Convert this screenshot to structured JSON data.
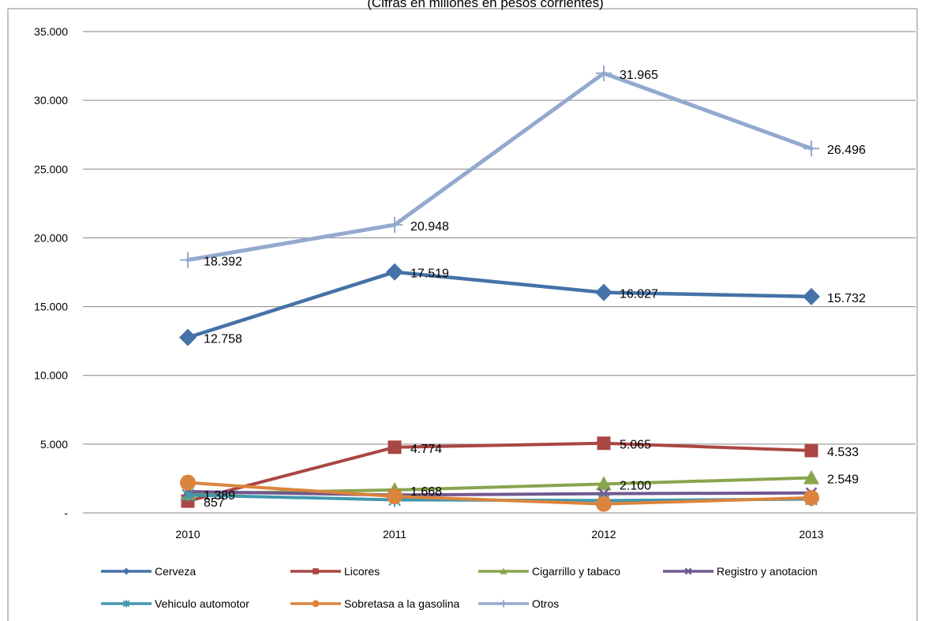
{
  "chart_data": {
    "type": "line",
    "title": "(Cifras en millones en pesos corrientes)",
    "categories": [
      "2010",
      "2011",
      "2012",
      "2013"
    ],
    "ylim": [
      0,
      35000
    ],
    "yticks": [
      0,
      5000,
      10000,
      15000,
      20000,
      25000,
      30000,
      35000
    ],
    "ytick_labels": [
      "-",
      "5.000",
      "10.000",
      "15.000",
      "20.000",
      "25.000",
      "30.000",
      "35.000"
    ],
    "grid": true,
    "legend": "bottom",
    "series": [
      {
        "name": "Cerveza",
        "color": "#4572A7",
        "marker": "diamond",
        "values": [
          12758,
          17519,
          16027,
          15732
        ],
        "labels": [
          "12.758",
          "17.519",
          "16.027",
          "15.732"
        ]
      },
      {
        "name": "Licores",
        "color": "#AA4643",
        "marker": "square",
        "values": [
          857,
          4774,
          5065,
          4533
        ],
        "labels": [
          "857",
          "4.774",
          "5.065",
          "4.533"
        ]
      },
      {
        "name": "Cigarrillo y tabaco",
        "color": "#89A54E",
        "marker": "triangle",
        "values": [
          1389,
          1668,
          2100,
          2549
        ],
        "labels": [
          "1.389",
          "1.668",
          "2.100",
          "2.549"
        ]
      },
      {
        "name": "Registro y anotacion",
        "color": "#71588F",
        "marker": "x",
        "values": [
          1550,
          1300,
          1400,
          1450
        ],
        "labels": []
      },
      {
        "name": "Vehiculo automotor",
        "color": "#4198AF",
        "marker": "star",
        "values": [
          1300,
          950,
          900,
          1000
        ],
        "labels": []
      },
      {
        "name": "Sobretasa a la gasolina",
        "color": "#DB843D",
        "marker": "circle",
        "values": [
          2200,
          1200,
          650,
          1100
        ],
        "labels": []
      },
      {
        "name": "Otros",
        "color": "#93A9CF",
        "marker": "plus",
        "values": [
          18392,
          20948,
          31965,
          26496
        ],
        "labels": [
          "18.392",
          "20.948",
          "31.965",
          "26.496"
        ]
      }
    ]
  }
}
